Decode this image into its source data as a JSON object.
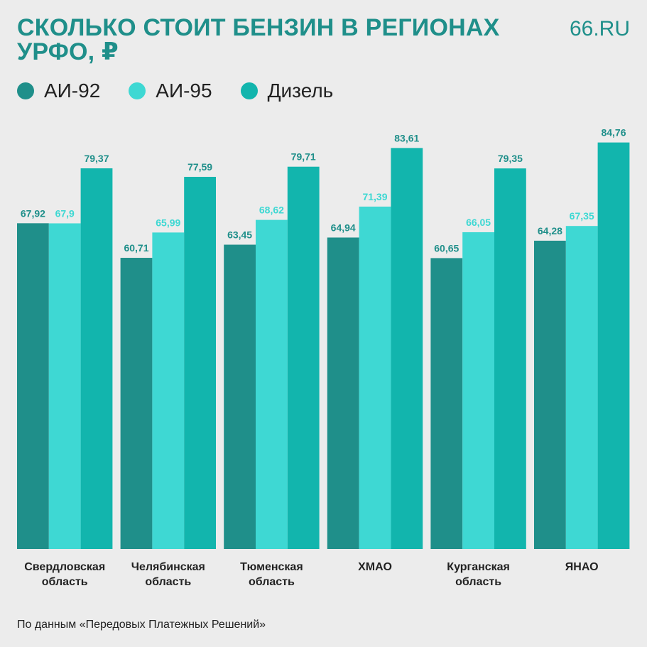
{
  "header": {
    "title_line1": "СКОЛЬКО СТОИТ БЕНЗИН В РЕГИОНАХ",
    "title_line2": "УРФО, ₽",
    "brand": "66.RU"
  },
  "footer": {
    "source": "По данным «Передовых Платежных Решений»"
  },
  "colors": {
    "background": "#ececec",
    "title": "#1f8f8a",
    "ai92": "#1f8f8a",
    "ai95": "#3ed8d3",
    "diesel": "#12b5ad"
  },
  "chart_data": {
    "type": "bar",
    "categories": [
      [
        "Свердловская",
        "область"
      ],
      [
        "Челябинская",
        "область"
      ],
      [
        "Тюменская",
        "область"
      ],
      [
        "ХМАО"
      ],
      [
        "Курганская",
        "область"
      ],
      [
        "ЯНАО"
      ]
    ],
    "series": [
      {
        "name": "АИ-92",
        "color": "#1f8f8a",
        "values": [
          67.92,
          60.71,
          63.45,
          64.94,
          60.65,
          64.28
        ],
        "labels": [
          "67,92",
          "60,71",
          "63,45",
          "64,94",
          "60,65",
          "64,28"
        ]
      },
      {
        "name": "АИ-95",
        "color": "#3ed8d3",
        "values": [
          67.9,
          65.99,
          68.62,
          71.39,
          66.05,
          67.35
        ],
        "labels": [
          "67,9",
          "65,99",
          "68,62",
          "71,39",
          "66,05",
          "67,35"
        ]
      },
      {
        "name": "Дизель",
        "color": "#12b5ad",
        "values": [
          79.37,
          77.59,
          79.71,
          83.61,
          79.35,
          84.76
        ],
        "labels": [
          "79,37",
          "77,59",
          "79,71",
          "83,61",
          "79,35",
          "84,76"
        ]
      }
    ],
    "title": "СКОЛЬКО СТОИТ БЕНЗИН В РЕГИОНАХ УРФО, ₽",
    "xlabel": "",
    "ylabel": "",
    "grid": false,
    "legend_position": "top-left"
  }
}
